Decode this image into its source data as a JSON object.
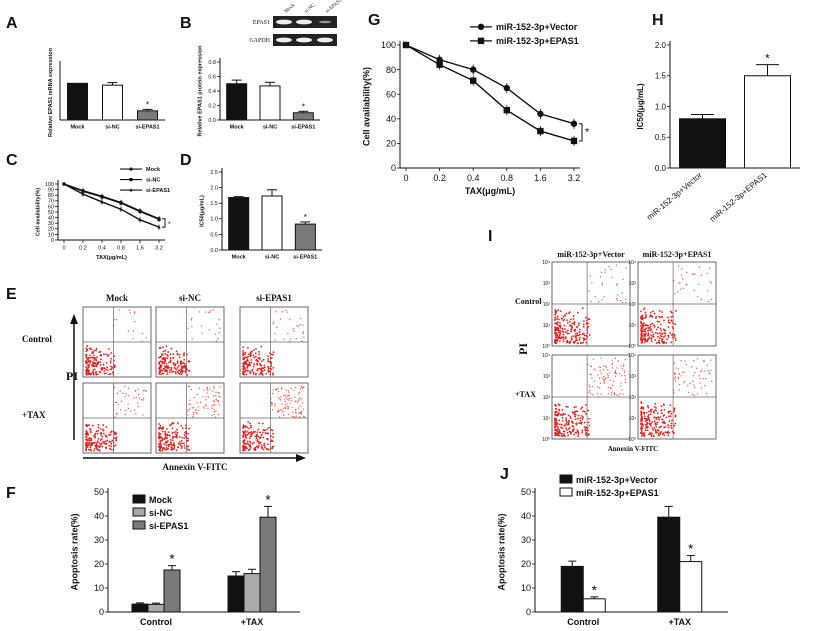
{
  "panel_labels": {
    "A": "A",
    "B": "B",
    "C": "C",
    "D": "D",
    "E": "E",
    "F": "F",
    "G": "G",
    "H": "H",
    "I": "I",
    "J": "J"
  },
  "blot": {
    "lanes": [
      "Mock",
      "si-NC",
      "si-EPAS1"
    ],
    "rows": [
      "EPAS1",
      "GAPDH"
    ]
  },
  "flow_E": {
    "cols": [
      "Mock",
      "si-NC",
      "si-EPAS1"
    ],
    "rows": [
      "Control",
      "+TAX"
    ],
    "xlabel": "Annexin V-FITC",
    "ylabel": "PI"
  },
  "flow_I": {
    "cols": [
      "miR-152-3p+Vector",
      "miR-152-3p+EPAS1"
    ],
    "rows": [
      "Control",
      "+TAX"
    ],
    "xlabel": "Annexin V-FITC",
    "ylabel": "PI",
    "ticks": [
      "10⁰",
      "10¹",
      "10²",
      "10³",
      "10⁴"
    ]
  },
  "colors": {
    "black": "#111111",
    "gray_light": "#aaaaaa",
    "gray_mid": "#7a7a7a",
    "white": "#ffffff",
    "dots": "#e02020"
  },
  "chart_data": [
    {
      "id": "A",
      "type": "bar",
      "categories": [
        "Mock",
        "si-NC",
        "si-EPAS1"
      ],
      "values": [
        1.0,
        0.95,
        0.25
      ],
      "errors": [
        0,
        0.07,
        0.04
      ],
      "fills": [
        "#111111",
        "#ffffff",
        "#7a7a7a"
      ],
      "ylabel": "Relative EPAS1 mRNA expression",
      "ylim": [
        0,
        1.5
      ],
      "star": [
        false,
        false,
        true
      ],
      "star_label": "*"
    },
    {
      "id": "B",
      "type": "bar",
      "categories": [
        "Mock",
        "si-NC",
        "si-EPAS1"
      ],
      "values": [
        0.5,
        0.47,
        0.1
      ],
      "errors": [
        0.05,
        0.05,
        0.02
      ],
      "fills": [
        "#111111",
        "#ffffff",
        "#7a7a7a"
      ],
      "ylabel": "Relative EPAS1 protein expression",
      "yticks": [
        0.0,
        0.2,
        0.4,
        0.6,
        0.8
      ],
      "ylim": [
        0,
        0.8
      ],
      "star": [
        false,
        false,
        true
      ],
      "star_label": "*"
    },
    {
      "id": "C",
      "type": "line",
      "x": [
        "0",
        "0.2",
        "0.4",
        "0.8",
        "1.6",
        "3.2"
      ],
      "series": [
        {
          "name": "Mock",
          "values": [
            100,
            88,
            78,
            67,
            52,
            38
          ],
          "marker": "circle",
          "fill": "#111111"
        },
        {
          "name": "si-NC",
          "values": [
            100,
            87,
            77,
            66,
            51,
            37
          ],
          "marker": "square",
          "fill": "#111111"
        },
        {
          "name": "si-EPAS1",
          "values": [
            100,
            82,
            68,
            55,
            36,
            23
          ],
          "marker": "triangle",
          "fill": "#111111"
        }
      ],
      "xlabel": "TAX(μg/mL)",
      "ylabel": "Cell availability(%)",
      "yticks": [
        0,
        10,
        20,
        30,
        40,
        50,
        60,
        70,
        80,
        90,
        100
      ],
      "ylim": [
        0,
        100
      ],
      "star_label": "*"
    },
    {
      "id": "D",
      "type": "bar",
      "categories": [
        "Mock",
        "si-NC",
        "si-EPAS1"
      ],
      "values": [
        1.68,
        1.73,
        0.83
      ],
      "errors": [
        0.03,
        0.2,
        0.07
      ],
      "fills": [
        "#111111",
        "#ffffff",
        "#7a7a7a"
      ],
      "ylabel": "IC50(μg/mL)",
      "yticks": [
        0.0,
        0.5,
        1.0,
        1.5,
        2.0,
        2.5
      ],
      "ylim": [
        0,
        2.5
      ],
      "star": [
        false,
        false,
        true
      ],
      "star_label": "*"
    },
    {
      "id": "F",
      "type": "bar",
      "categories": [
        "Control",
        "+TAX"
      ],
      "series": [
        {
          "name": "Mock",
          "values": [
            3.3,
            15
          ],
          "errors": [
            0.5,
            1.8
          ],
          "fill": "#111111"
        },
        {
          "name": "si-NC",
          "values": [
            3.2,
            16
          ],
          "errors": [
            0.5,
            1.8
          ],
          "fill": "#aaaaaa"
        },
        {
          "name": "si-EPAS1",
          "values": [
            17.5,
            39.5
          ],
          "errors": [
            1.8,
            4.5
          ],
          "fill": "#7a7a7a"
        }
      ],
      "ylabel": "Apoptosis rate(%)",
      "yticks": [
        0,
        10,
        20,
        30,
        40,
        50
      ],
      "ylim": [
        0,
        50
      ],
      "stars": [
        [
          false,
          false,
          true
        ],
        [
          false,
          false,
          true
        ]
      ],
      "star_label": "*"
    },
    {
      "id": "G",
      "type": "line",
      "x": [
        "0",
        "0.2",
        "0.4",
        "0.8",
        "1.6",
        "3.2"
      ],
      "series": [
        {
          "name": "miR-152-3p+Vector",
          "values": [
            100,
            88,
            80,
            65,
            44,
            36
          ],
          "marker": "circle",
          "fill": "#111111"
        },
        {
          "name": "miR-152-3p+EPAS1",
          "values": [
            100,
            84,
            71,
            47,
            30,
            22
          ],
          "marker": "square",
          "fill": "#111111"
        }
      ],
      "xlabel": "TAX(μg/mL)",
      "ylabel": "Cell availability(%)",
      "yticks": [
        0,
        20,
        40,
        60,
        80,
        100
      ],
      "ylim": [
        0,
        100
      ],
      "star_label": "*"
    },
    {
      "id": "H",
      "type": "bar",
      "categories": [
        "miR-152-3p+Vector",
        "miR-152-3p+EPAS1"
      ],
      "values": [
        0.8,
        1.5
      ],
      "errors": [
        0.07,
        0.18
      ],
      "fills": [
        "#111111",
        "#ffffff"
      ],
      "ylabel": "IC50(μg/mL)",
      "yticks": [
        0.0,
        0.5,
        1.0,
        1.5,
        2.0
      ],
      "ylim": [
        0,
        2.0
      ],
      "star": [
        false,
        true
      ],
      "star_label": "*"
    },
    {
      "id": "J",
      "type": "bar",
      "categories": [
        "Control",
        "+TAX"
      ],
      "series": [
        {
          "name": "miR-152-3p+Vector",
          "values": [
            19,
            39.5
          ],
          "errors": [
            2.2,
            4.5
          ],
          "fill": "#111111"
        },
        {
          "name": "miR-152-3p+EPAS1",
          "values": [
            5.5,
            21
          ],
          "errors": [
            0.8,
            2.5
          ],
          "fill": "#ffffff"
        }
      ],
      "ylabel": "Apoptosis rate(%)",
      "yticks": [
        0,
        10,
        20,
        30,
        40,
        50
      ],
      "ylim": [
        0,
        50
      ],
      "stars": [
        [
          false,
          true
        ],
        [
          false,
          true
        ]
      ],
      "star_label": "*"
    }
  ]
}
